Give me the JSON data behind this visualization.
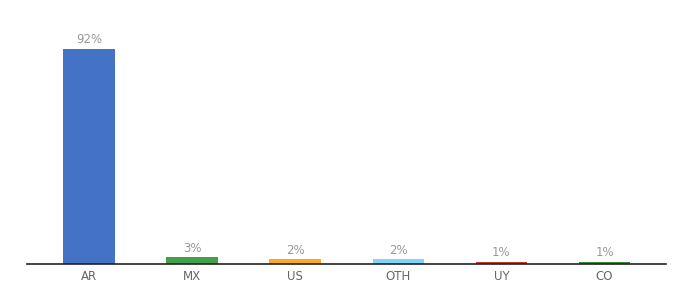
{
  "categories": [
    "AR",
    "MX",
    "US",
    "OTH",
    "UY",
    "CO"
  ],
  "values": [
    92,
    3,
    2,
    2,
    1,
    1
  ],
  "labels": [
    "92%",
    "3%",
    "2%",
    "2%",
    "1%",
    "1%"
  ],
  "bar_colors": [
    "#4472C4",
    "#43A047",
    "#FFA726",
    "#81D4FA",
    "#C0392B",
    "#388E3C"
  ],
  "background_color": "#FFFFFF",
  "label_color": "#999999",
  "xlabel_color": "#666666",
  "ylim": [
    0,
    100
  ],
  "bar_width": 0.5,
  "label_fontsize": 8.5,
  "tick_fontsize": 8.5,
  "figsize": [
    6.8,
    3.0
  ],
  "dpi": 100
}
